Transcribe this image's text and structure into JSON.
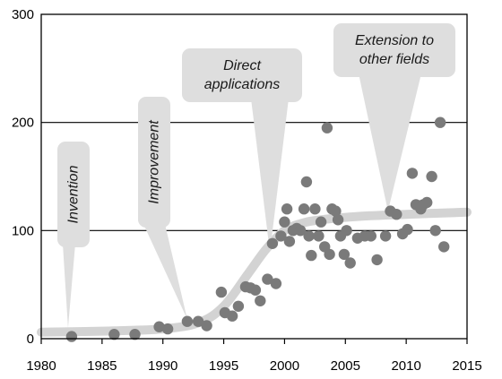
{
  "chart_data": {
    "type": "scatter",
    "title": "",
    "xlabel": "",
    "ylabel": "",
    "xlim": [
      1980,
      2015
    ],
    "ylim": [
      0,
      300
    ],
    "x_ticks": [
      1980,
      1985,
      1990,
      1995,
      2000,
      2005,
      2010,
      2015
    ],
    "y_ticks": [
      0,
      100,
      200,
      300
    ],
    "grid": "horizontal",
    "colors": {
      "points": "#7a7a7a",
      "trend": "#d3d3d3",
      "callout": "#dedede"
    },
    "series": [
      {
        "values": [
          [
            1982.5,
            2
          ],
          [
            1986,
            4
          ],
          [
            1987.7,
            4
          ],
          [
            1989.7,
            11
          ],
          [
            1990.4,
            9
          ],
          [
            1992,
            16
          ],
          [
            1992.9,
            16
          ],
          [
            1993.6,
            12
          ],
          [
            1994.8,
            43
          ],
          [
            1995.1,
            24
          ],
          [
            1995.7,
            21
          ],
          [
            1996.2,
            30
          ],
          [
            1996.8,
            48
          ],
          [
            1997.2,
            47
          ],
          [
            1997.6,
            45
          ],
          [
            1998,
            35
          ],
          [
            1998.6,
            55
          ],
          [
            1999,
            88
          ],
          [
            1999.3,
            51
          ],
          [
            1999.7,
            95
          ],
          [
            2000,
            108
          ],
          [
            2000.2,
            120
          ],
          [
            2000.4,
            90
          ],
          [
            2000.7,
            100
          ],
          [
            2001,
            102
          ],
          [
            2001.3,
            100
          ],
          [
            2001.6,
            120
          ],
          [
            2001.8,
            145
          ],
          [
            2002,
            95
          ],
          [
            2002.2,
            77
          ],
          [
            2002.5,
            120
          ],
          [
            2002.8,
            95
          ],
          [
            2003,
            108
          ],
          [
            2003.3,
            85
          ],
          [
            2003.5,
            195
          ],
          [
            2003.7,
            78
          ],
          [
            2003.9,
            120
          ],
          [
            2004.2,
            118
          ],
          [
            2004.4,
            110
          ],
          [
            2004.6,
            95
          ],
          [
            2004.9,
            78
          ],
          [
            2005.1,
            100
          ],
          [
            2005.4,
            70
          ],
          [
            2006,
            93
          ],
          [
            2006.6,
            95
          ],
          [
            2007.1,
            95
          ],
          [
            2007.6,
            73
          ],
          [
            2008.3,
            95
          ],
          [
            2008.7,
            118
          ],
          [
            2009.2,
            115
          ],
          [
            2009.7,
            97
          ],
          [
            2010.1,
            101
          ],
          [
            2010.5,
            153
          ],
          [
            2010.8,
            124
          ],
          [
            2011.2,
            120
          ],
          [
            2011.4,
            124
          ],
          [
            2011.7,
            126
          ],
          [
            2012.1,
            150
          ],
          [
            2012.4,
            100
          ],
          [
            2012.8,
            200
          ],
          [
            2013.1,
            85
          ]
        ]
      }
    ],
    "trend_curve": [
      [
        1980,
        6
      ],
      [
        1985,
        7
      ],
      [
        1990,
        9
      ],
      [
        1993,
        15
      ],
      [
        1995,
        30
      ],
      [
        1997,
        60
      ],
      [
        1998.5,
        83
      ],
      [
        2000,
        100
      ],
      [
        2001.5,
        107
      ],
      [
        2003,
        110
      ],
      [
        2006,
        113
      ],
      [
        2010,
        115
      ],
      [
        2015,
        117
      ]
    ],
    "annotations": [
      {
        "text": [
          "Invention"
        ],
        "x": 1982.2,
        "y": 10
      },
      {
        "text": [
          "Improvement"
        ],
        "x": 1992,
        "y": 18
      },
      {
        "text": [
          "Direct",
          "applications"
        ],
        "x": 1998.8,
        "y": 80
      },
      {
        "text": [
          "Extension to",
          "other fields"
        ],
        "x": 2008.5,
        "y": 118
      }
    ]
  }
}
